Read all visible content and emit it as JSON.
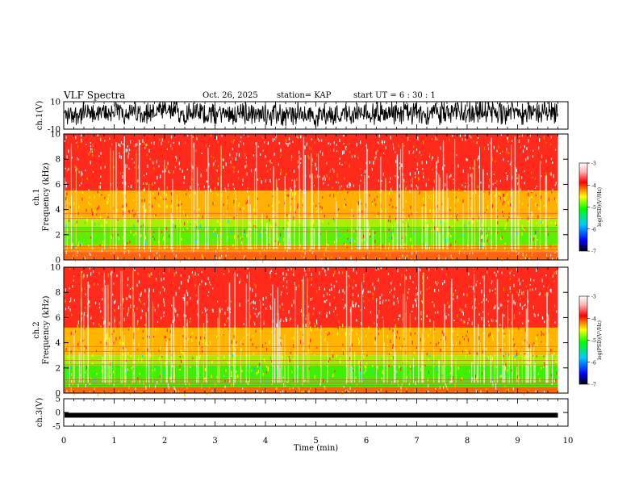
{
  "header": {
    "title": "VLF Spectra",
    "date": "Oct. 26, 2025",
    "station": "station= KAP",
    "start": "start  UT =  6 : 30 : 1"
  },
  "chart_data": [
    {
      "type": "line",
      "panel": "ch1-waveform",
      "ylabel": "ch.1(V)",
      "ylim": [
        -10,
        10
      ],
      "yticks": [
        "10",
        "-10"
      ],
      "xlim": [
        0,
        10
      ],
      "note": "dense oscillating voltage trace spanning roughly -10 to 10 V"
    },
    {
      "type": "heatmap",
      "panel": "ch1-spectrogram",
      "ylabel_top": "ch.1",
      "ylabel": "Frequency (kHz)",
      "ylim": [
        0,
        10
      ],
      "yticks": [
        "0",
        "2",
        "4",
        "6",
        "8",
        "10"
      ],
      "xlim": [
        0,
        10
      ],
      "data_end_min": 9.8,
      "bands": [
        {
          "from": 0,
          "to": 0.6,
          "level": "mixed",
          "color": "#ff6a00"
        },
        {
          "from": 0.6,
          "to": 1.2,
          "level": -4.3,
          "color": "#ff9a00"
        },
        {
          "from": 1.2,
          "to": 2.6,
          "level": -5.2,
          "color": "#5cf000"
        },
        {
          "from": 2.6,
          "to": 3.4,
          "level": -5.0,
          "color": "#a8f000"
        },
        {
          "from": 3.4,
          "to": 5.5,
          "level": -4.4,
          "color": "#ffb000"
        },
        {
          "from": 5.5,
          "to": 10,
          "level": -3.8,
          "color": "#ff2a1c"
        }
      ],
      "colorbar": {
        "min": -7,
        "max": -3,
        "ticks": [
          "-3",
          "-4",
          "-5",
          "-6",
          "-7"
        ],
        "label": "log(PSD)(V²/Hz)"
      }
    },
    {
      "type": "heatmap",
      "panel": "ch2-spectrogram",
      "ylabel_top": "ch.2",
      "ylabel": "Frequency (kHz)",
      "ylim": [
        0,
        10
      ],
      "yticks": [
        "0",
        "2",
        "4",
        "6",
        "8",
        "10"
      ],
      "xlim": [
        0,
        10
      ],
      "data_end_min": 9.8,
      "bands": [
        {
          "from": 0,
          "to": 0.5,
          "level": "mixed",
          "color": "#ff6a00"
        },
        {
          "from": 0.5,
          "to": 2.2,
          "level": -5.4,
          "color": "#3ef000"
        },
        {
          "from": 2.2,
          "to": 3.0,
          "level": -5.0,
          "color": "#9cf000"
        },
        {
          "from": 3.0,
          "to": 5.2,
          "level": -4.3,
          "color": "#ffb400"
        },
        {
          "from": 5.2,
          "to": 10,
          "level": -3.8,
          "color": "#ff2a1c"
        }
      ],
      "colorbar": {
        "min": -7,
        "max": -3,
        "ticks": [
          "-3",
          "-4",
          "-5",
          "-6",
          "-7"
        ],
        "label": "log(PSD)(V²/Hz)"
      }
    },
    {
      "type": "line",
      "panel": "ch3-waveform",
      "ylabel": "ch.3(V)",
      "ylim": [
        -5,
        5
      ],
      "yticks": [
        "5",
        "0",
        "-5"
      ],
      "xlim": [
        0,
        10
      ],
      "level_V": -1.0,
      "xlabel": "Time (min)",
      "xticks": [
        "0",
        "1",
        "2",
        "3",
        "4",
        "5",
        "6",
        "7",
        "8",
        "9",
        "10"
      ]
    }
  ]
}
